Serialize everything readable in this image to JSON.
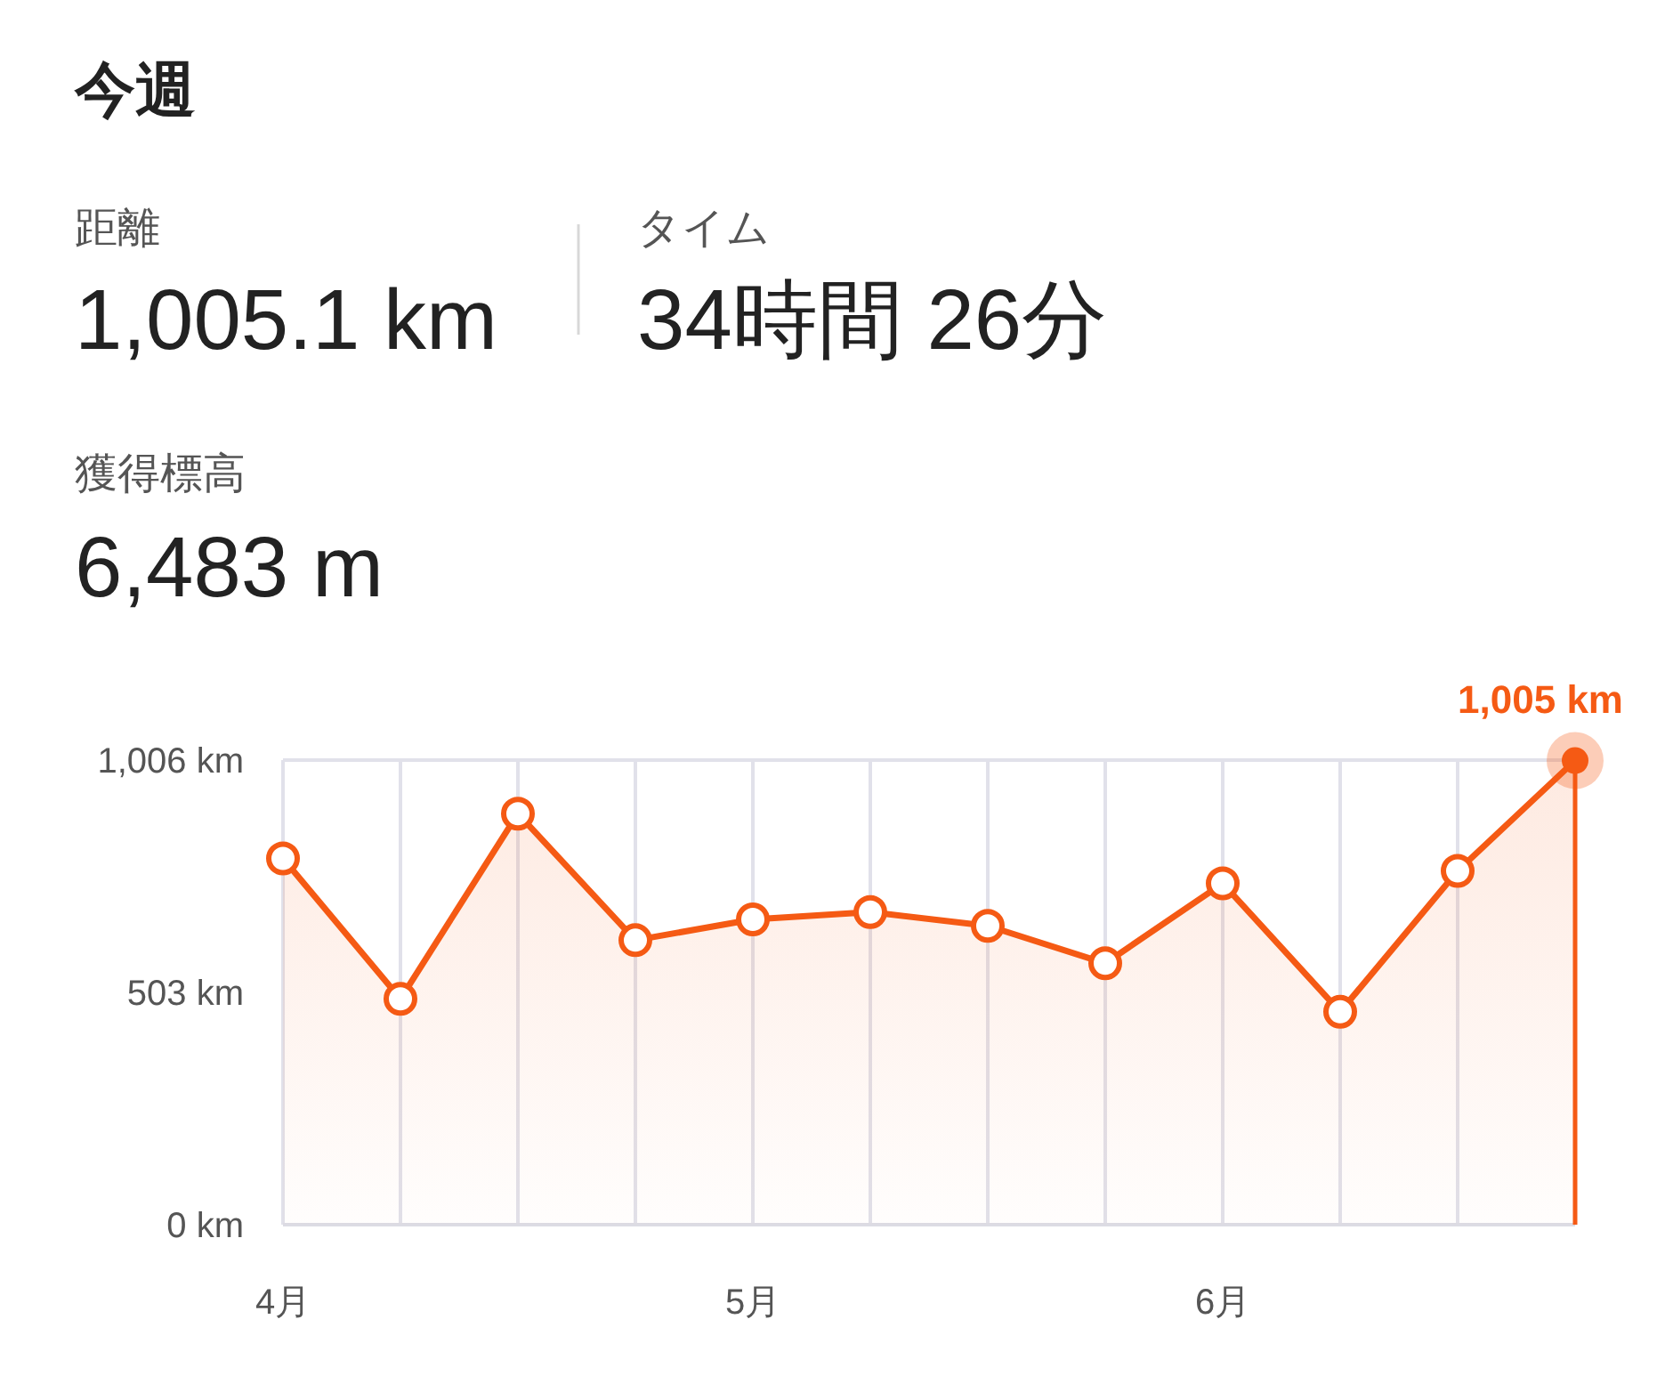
{
  "chart_data": {
    "type": "area",
    "title": "今週",
    "annotations": [
      "距離",
      "1,005.1 km",
      "タイム",
      "34時間 26分",
      "獲得標高",
      "6,483 m"
    ],
    "categories": [
      "4月",
      null,
      null,
      null,
      "5月",
      null,
      null,
      null,
      "6月",
      null,
      null,
      null
    ],
    "series": [
      {
        "color": "#f55a14",
        "values": [
          793,
          489,
          890,
          616,
          661,
          677,
          647,
          566,
          739,
          461,
          766,
          1005
        ],
        "value_labels": [
          null,
          null,
          null,
          null,
          null,
          null,
          null,
          null,
          null,
          null,
          null,
          "1,005 km"
        ]
      }
    ],
    "ylim": [
      0,
      1006
    ],
    "yticks": [
      {
        "value": 0,
        "label": "0 km"
      },
      {
        "value": 503,
        "label": "503 km"
      },
      {
        "value": 1006,
        "label": "1,006 km"
      }
    ],
    "grid": "x",
    "marker": "circle"
  }
}
